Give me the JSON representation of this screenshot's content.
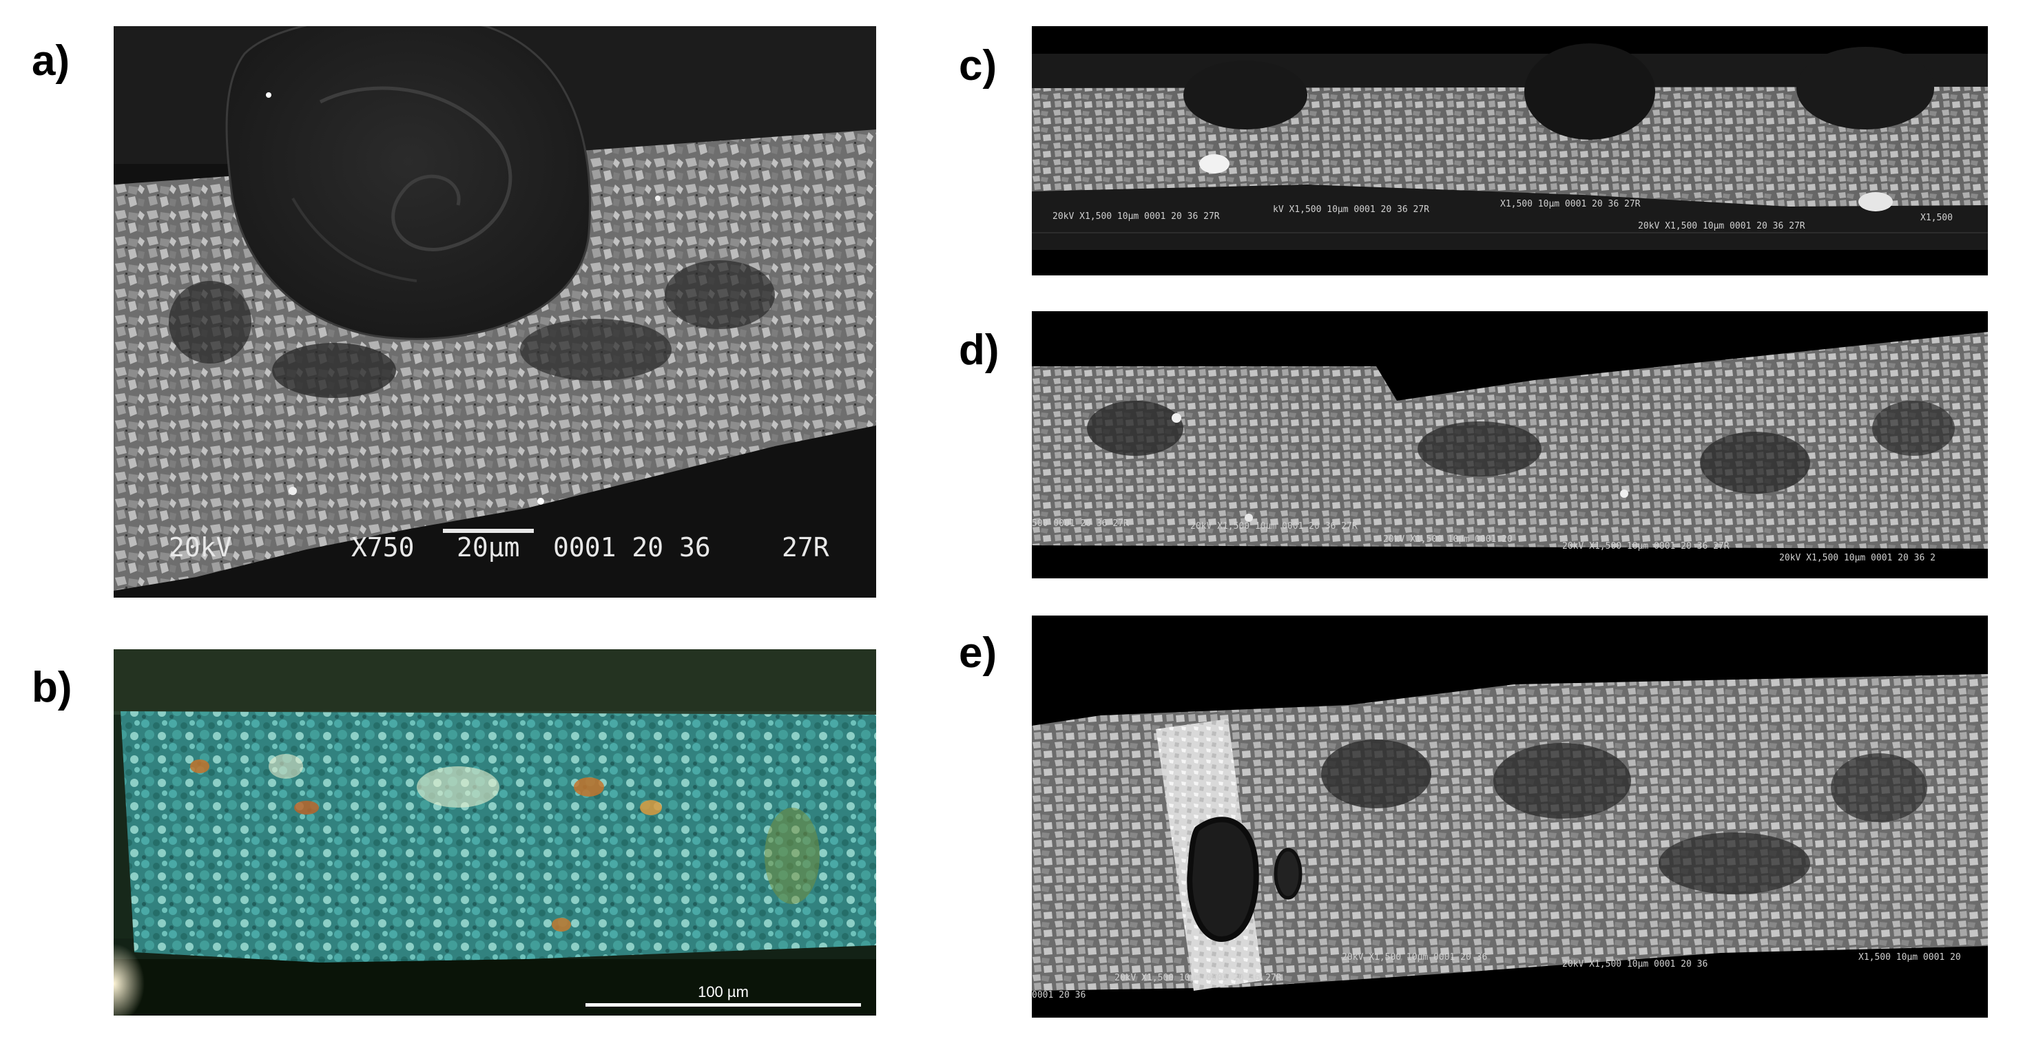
{
  "labels": {
    "a": "a)",
    "b": "b)",
    "c": "c)",
    "d": "d)",
    "e": "e)"
  },
  "panel_a": {
    "kv": "20kV",
    "mag": "X750",
    "scale": "20µm",
    "id": "0001 20 36",
    "tag": "27R"
  },
  "panel_b": {
    "scale": "100 µm"
  },
  "strip_info": {
    "c": [
      "20kV  X1,500  10µm 0001 20 36  27R",
      "kV  X1,500  10µm 0001 20 36  27R",
      "X1,500  10µm 0001 20 36  27R",
      "20kV  X1,500  10µm 0001 20 36  27R",
      "X1,500"
    ],
    "d": [
      "500  0001 20 36  27R",
      "20kV  X1,500  10µm 0001 20 36  27R",
      "20kV  X1,500  10µm 0001 20",
      "20kV  X1,500  10µm 0001 20 36  27R",
      "20kV  X1,500  10µm 0001 20 36  2"
    ],
    "e": [
      "20kV  X1,500  10µm 0001 20 36  27R",
      "20kV  X1,500  10µm 0001 20 36",
      "20kV  X1,500  10µm 0001 20 36",
      "X1,500  10µm 0001 20",
      "0001 20 36"
    ]
  },
  "colors": {
    "sem_bg": "#101010",
    "grain": "#9a9a9a",
    "om_teal": "#2f8f8c",
    "om_dark": "#0e1a10"
  }
}
